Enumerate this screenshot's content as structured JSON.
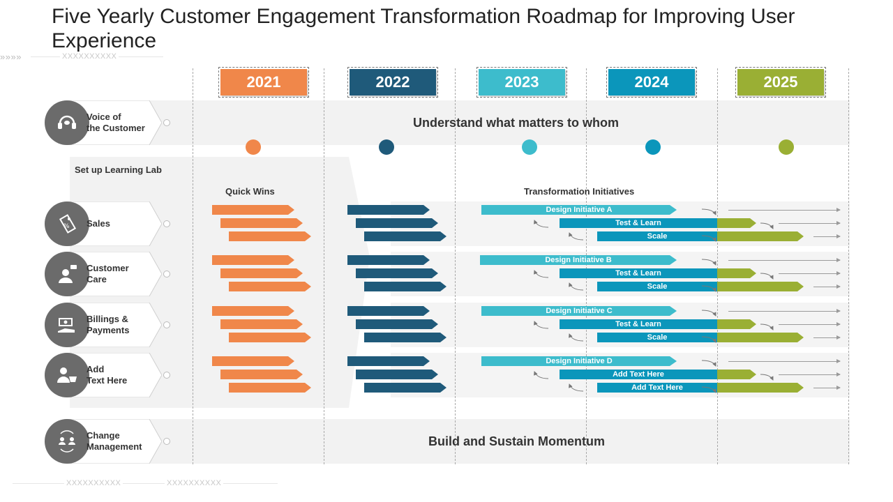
{
  "title": "Five Yearly Customer Engagement Transformation Roadmap for Improving User Experience",
  "decor": {
    "arrows": "»»»»",
    "placeholder": "XXXXXXXXXX"
  },
  "years": [
    {
      "label": "2021",
      "color": "#f0874a"
    },
    {
      "label": "2022",
      "color": "#1f5a7a"
    },
    {
      "label": "2023",
      "color": "#3dbccc"
    },
    {
      "label": "2024",
      "color": "#0b96bb"
    },
    {
      "label": "2025",
      "color": "#9aaf34"
    }
  ],
  "bands": {
    "top": "Understand what matters to whom",
    "bottom": "Build and Sustain Momentum"
  },
  "learning_lab": "Set up Learning Lab",
  "column_heads": {
    "quick_wins": "Quick Wins",
    "transformation": "Transformation Initiatives"
  },
  "rows": [
    {
      "label": "Voice of\nthe Customer",
      "icon": "headset-icon"
    },
    {
      "label": "Sales",
      "icon": "price-tag-icon"
    },
    {
      "label": "Customer\nCare",
      "icon": "support-agent-icon"
    },
    {
      "label": "Billings &\nPayments",
      "icon": "money-hand-icon"
    },
    {
      "label": "Add\nText Here",
      "icon": "user-cart-icon"
    },
    {
      "label": "Change\nManagement",
      "icon": "people-cycle-icon"
    }
  ],
  "initiatives": [
    {
      "design": "Design Initiative A",
      "test": "Test & Learn",
      "scale": "Scale"
    },
    {
      "design": "Design Initiative B",
      "test": "Test & Learn",
      "scale": "Scale"
    },
    {
      "design": "Design Initiative C",
      "test": "Test & Learn",
      "scale": "Scale"
    },
    {
      "design": "Design Initiative D",
      "test": "Add  Text Here",
      "scale": "Add  Text Here"
    }
  ],
  "colors": {
    "orange": "#f0874a",
    "navy": "#1f5a7a",
    "teal": "#3dbccc",
    "blue": "#0b96bb",
    "green": "#9aaf34",
    "icon_gray": "#6b6b6b"
  }
}
